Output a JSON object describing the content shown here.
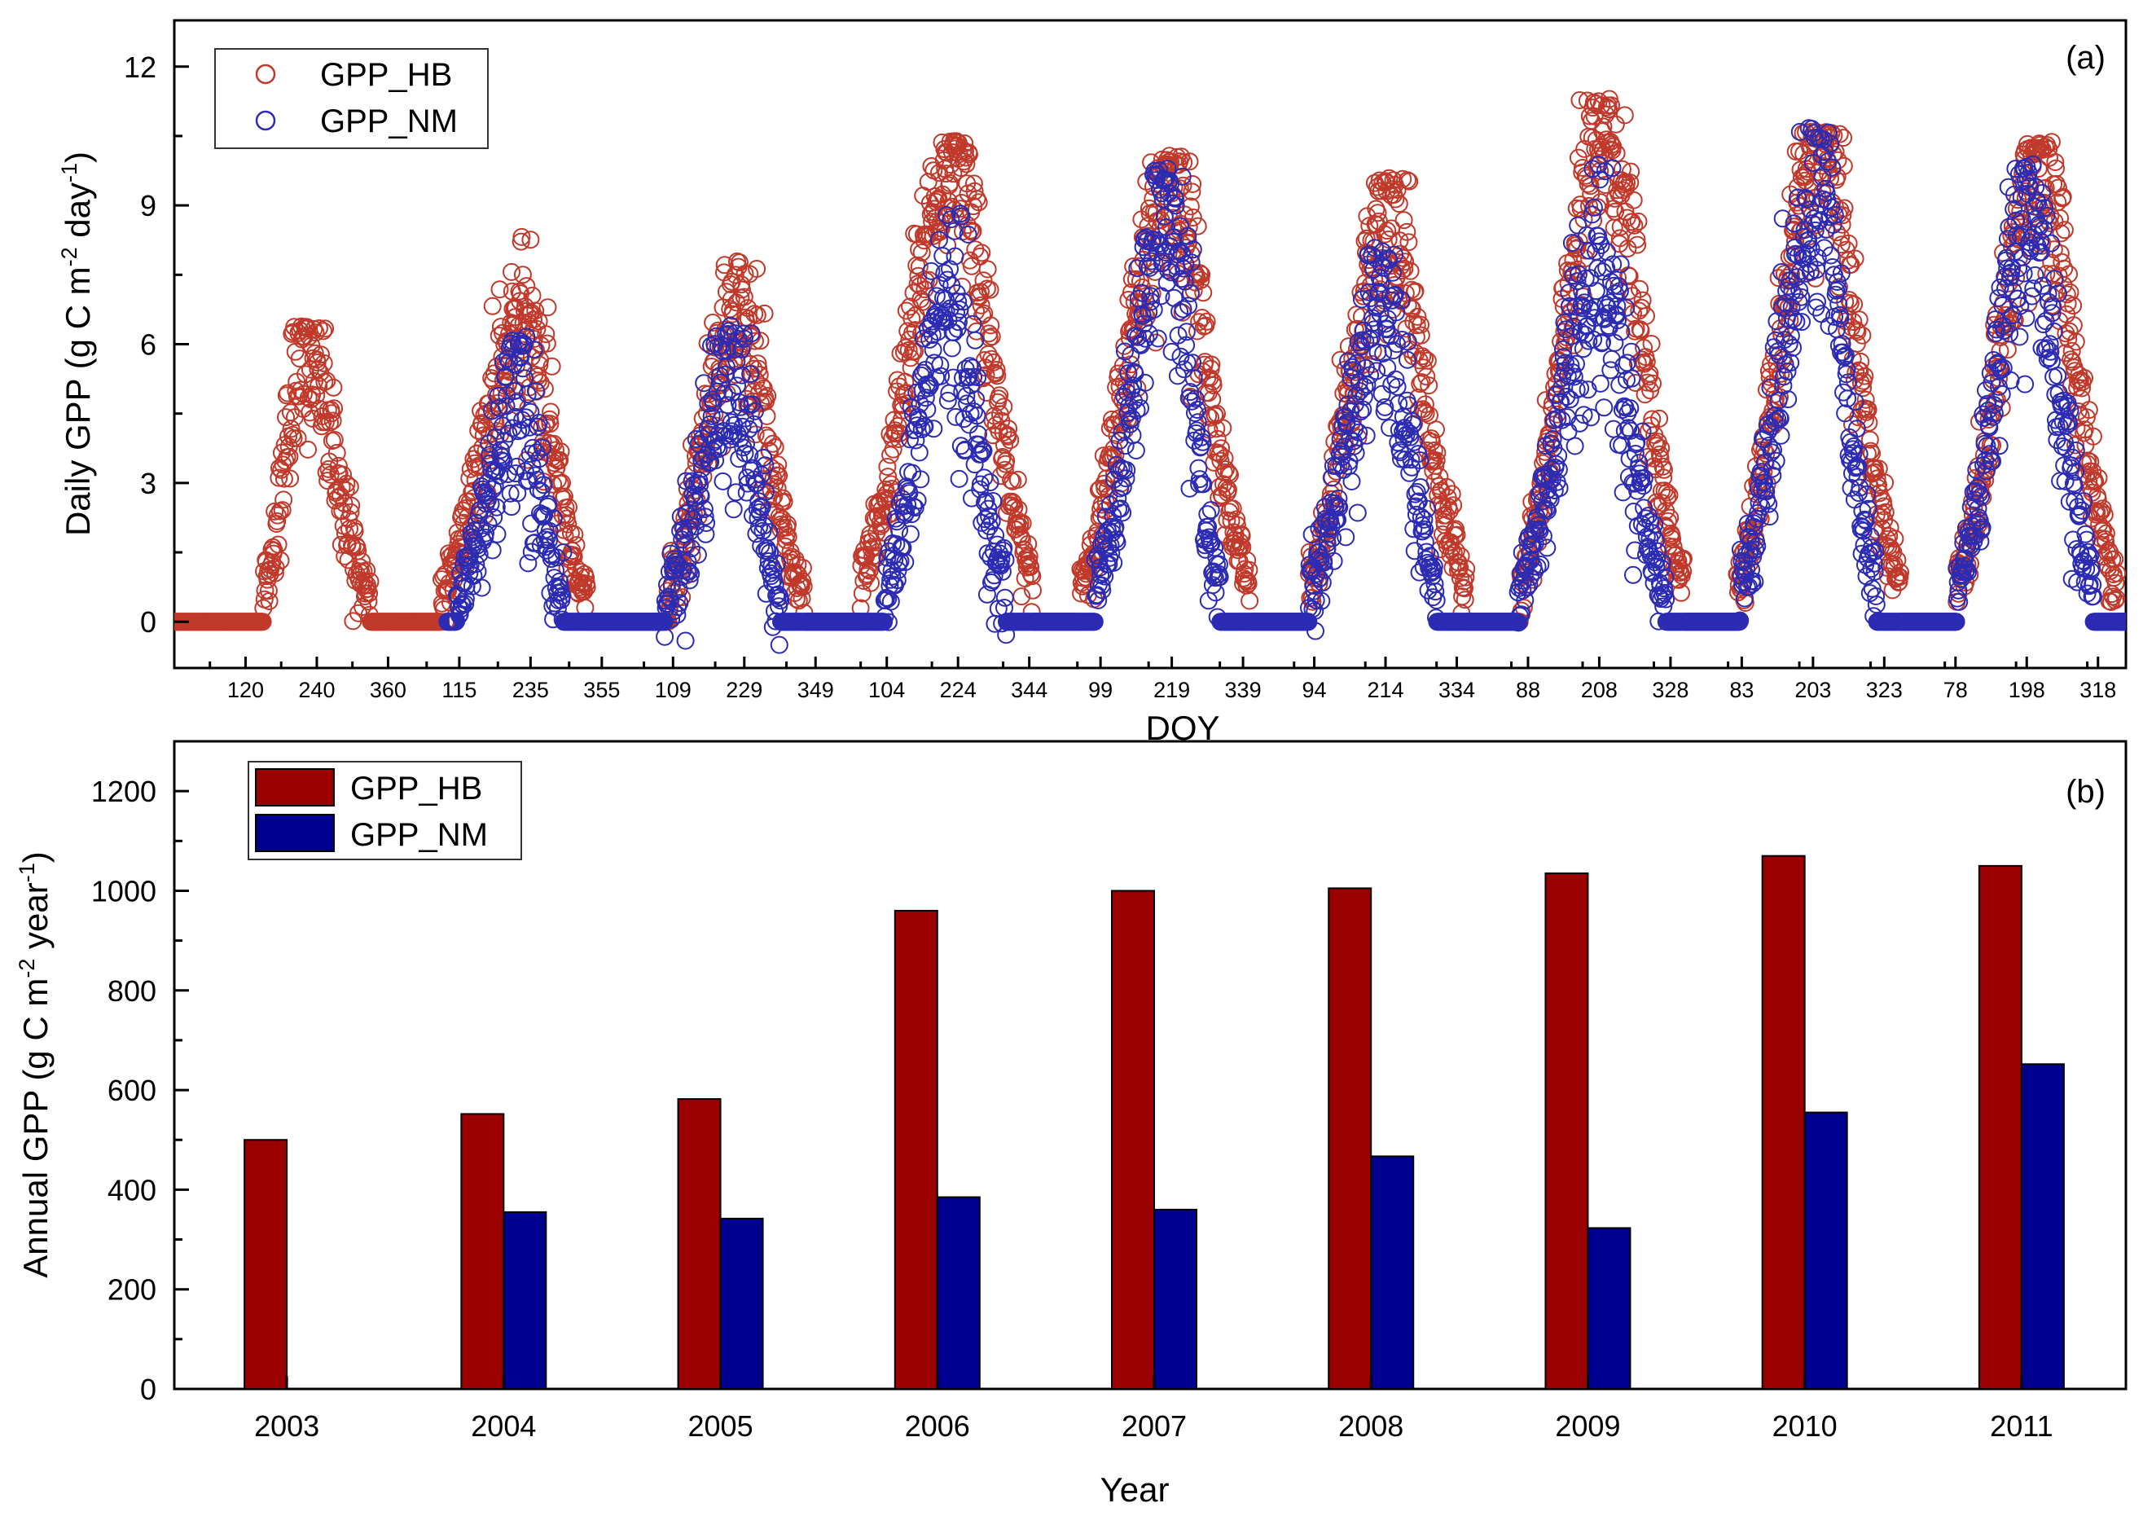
{
  "colors": {
    "hb": "#9b0000",
    "nm": "#000090",
    "hb_marker": "#c0392b",
    "nm_marker": "#2b2bb3"
  },
  "chart_data": [
    {
      "type": "scatter",
      "panel_label": "(a)",
      "xlabel": "DOY",
      "ylabel_parts": [
        "Daily GPP (g C m",
        "-2",
        " day",
        "-1",
        ")"
      ],
      "ylim": [
        -1,
        13
      ],
      "yticks": [
        0,
        3,
        6,
        9,
        12
      ],
      "ytick_labels": [
        "0",
        "3",
        "6",
        "9",
        "12"
      ],
      "day_range": [
        0,
        3287
      ],
      "x_tick_labels": [
        "120",
        "240",
        "360",
        "115",
        "235",
        "355",
        "109",
        "229",
        "349",
        "104",
        "224",
        "344",
        "99",
        "219",
        "339",
        "94",
        "214",
        "334",
        "88",
        "208",
        "328",
        "83",
        "203",
        "323",
        "78",
        "198",
        "318"
      ],
      "years": [
        2003,
        2004,
        2005,
        2006,
        2007,
        2008,
        2009,
        2010,
        2011
      ],
      "grid": false,
      "legend_position": "top-left",
      "series": [
        {
          "name": "GPP_HB",
          "season_start_doy": [
            150,
            85,
            100,
            60,
            65,
            85,
            75,
            75,
            80
          ],
          "season_end_doy": [
            330,
            330,
            330,
            350,
            350,
            350,
            350,
            350,
            350
          ],
          "peak_doy": [
            220,
            220,
            215,
            215,
            215,
            215,
            215,
            210,
            215
          ],
          "peak_value": [
            6.0,
            6.5,
            6.8,
            10.0,
            9.6,
            8.6,
            10.6,
            10.3,
            9.8
          ],
          "max_value": [
            6.4,
            8.4,
            7.8,
            10.4,
            10.1,
            9.6,
            11.3,
            10.6,
            10.4
          ]
        },
        {
          "name": "GPP_NM",
          "data_start_doy": 95,
          "season_start_doy": [
            null,
            110,
            95,
            100,
            90,
            85,
            70,
            80,
            80
          ],
          "season_end_doy": [
            null,
            290,
            290,
            305,
            300,
            300,
            320,
            310,
            310
          ],
          "peak_doy": [
            null,
            215,
            210,
            210,
            210,
            215,
            205,
            210,
            200
          ],
          "peak_value": [
            null,
            5.0,
            5.4,
            7.0,
            8.6,
            7.0,
            7.5,
            9.0,
            8.6
          ],
          "max_value": [
            null,
            6.2,
            6.4,
            9.0,
            9.8,
            8.1,
            9.9,
            10.7,
            9.9
          ]
        }
      ]
    },
    {
      "type": "bar",
      "panel_label": "(b)",
      "xlabel": "Year",
      "ylabel_parts": [
        "Annual GPP (g C m",
        "-2",
        " year",
        "-1",
        ")"
      ],
      "categories": [
        "2003",
        "2004",
        "2005",
        "2006",
        "2007",
        "2008",
        "2009",
        "2010",
        "2011"
      ],
      "ylim": [
        0,
        1300
      ],
      "yticks": [
        0,
        200,
        400,
        600,
        800,
        1000,
        1200
      ],
      "ytick_labels": [
        "0",
        "200",
        "400",
        "600",
        "800",
        "1000",
        "1200"
      ],
      "grid": false,
      "legend_position": "top-left",
      "series": [
        {
          "name": "GPP_HB",
          "values": [
            500,
            552,
            582,
            960,
            1000,
            1005,
            1035,
            1070,
            1050
          ]
        },
        {
          "name": "GPP_NM",
          "values": [
            null,
            355,
            342,
            385,
            360,
            467,
            323,
            555,
            652
          ]
        }
      ]
    }
  ]
}
